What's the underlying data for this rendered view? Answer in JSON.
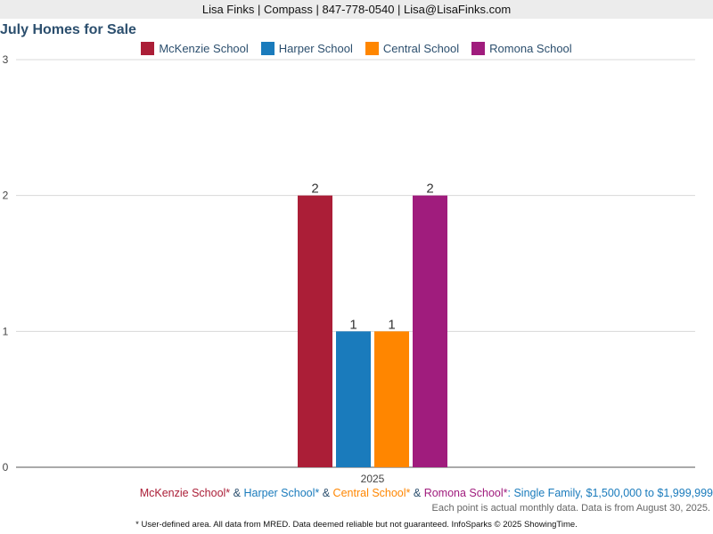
{
  "header": {
    "contact": "Lisa Finks | Compass | 847-778-0540 | Lisa@LisaFinks.com"
  },
  "chart_data": {
    "type": "bar",
    "title": "July Homes for Sale",
    "categories": [
      "2025"
    ],
    "series": [
      {
        "name": "McKenzie School",
        "color": "#ab1e37",
        "values": [
          2
        ]
      },
      {
        "name": "Harper School",
        "color": "#1a7bbc",
        "values": [
          1
        ]
      },
      {
        "name": "Central School",
        "color": "#ff8600",
        "values": [
          1
        ]
      },
      {
        "name": "Romona School",
        "color": "#a01c7d",
        "values": [
          2
        ]
      }
    ],
    "y_ticks": [
      "0",
      "1",
      "2",
      "3"
    ],
    "ylim": [
      0,
      3
    ],
    "grid": true,
    "legend_position": "top"
  },
  "footer": {
    "series_line": [
      {
        "text": "McKenzie School*",
        "color": "#ab1e37"
      },
      {
        "text": " & ",
        "color": "#2c4f6e"
      },
      {
        "text": "Harper School*",
        "color": "#1a7bbc"
      },
      {
        "text": " & ",
        "color": "#2c4f6e"
      },
      {
        "text": "Central School*",
        "color": "#ff8600"
      },
      {
        "text": " & ",
        "color": "#2c4f6e"
      },
      {
        "text": "Romona School*",
        "color": "#a01c7d"
      },
      {
        "text": ": Single Family, $1,500,000 to $1,999,999",
        "color": "#1a7bbc"
      }
    ],
    "note": "Each point is actual monthly data. Data is from August 30, 2025.",
    "disclaimer": "* User-defined area. All data from MRED. Data deemed reliable but not guaranteed. InfoSparks © 2025 ShowingTime."
  }
}
